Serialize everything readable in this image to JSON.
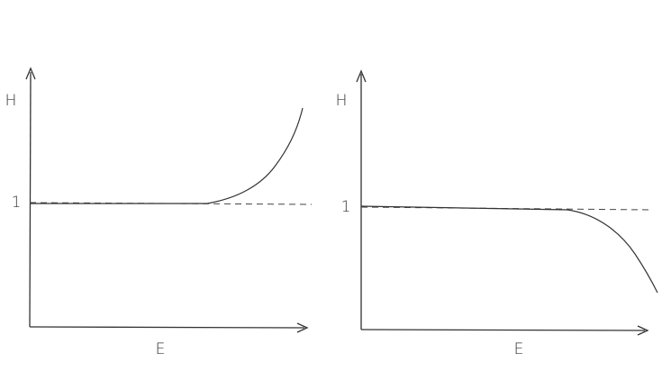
{
  "panels": [
    {
      "y_label": "H",
      "y_tick": "1",
      "x_label": "E"
    },
    {
      "y_label": "H",
      "y_tick": "1",
      "x_label": "E"
    }
  ]
}
